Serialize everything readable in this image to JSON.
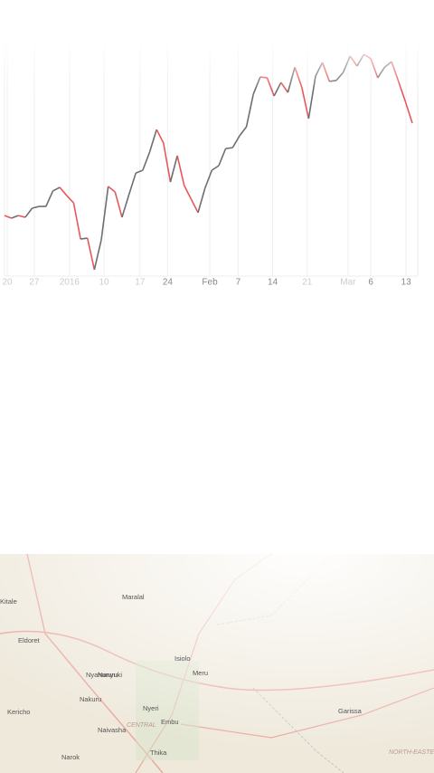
{
  "chart_data": {
    "type": "line",
    "values": [
      27.3,
      26.1,
      27.3,
      26.5,
      30.6,
      31.4,
      31.4,
      38.4,
      40.0,
      36.3,
      33.0,
      16.7,
      17.1,
      2.9,
      16.3,
      40.4,
      37.9,
      26.5,
      36.7,
      46.5,
      47.7,
      55.9,
      66.1,
      60.0,
      42.4,
      54.3,
      40.8,
      34.7,
      28.6,
      39.6,
      47.7,
      49.8,
      57.5,
      57.9,
      63.2,
      67.3,
      82.0,
      89.8,
      89.4,
      81.2,
      87.3,
      82.8,
      94.2,
      85.3,
      71.0,
      90.2,
      96.3,
      87.8,
      88.2,
      91.8,
      99.2,
      94.7,
      100,
      98.0,
      89.4,
      94.2,
      96.7,
      87.8,
      78.7,
      69.0
    ],
    "up_color": "#6e6e6e",
    "down_color": "#e8575a",
    "ylim": [
      0,
      100
    ],
    "xlim": [
      0,
      59
    ],
    "xticks": [
      {
        "value": 0.4,
        "label": "20"
      },
      {
        "value": 4.3,
        "label": "27"
      },
      {
        "value": 9.4,
        "label": "2016"
      },
      {
        "value": 14.4,
        "label": "10"
      },
      {
        "value": 19.6,
        "label": "17"
      },
      {
        "value": 23.6,
        "label": "24"
      },
      {
        "value": 29.7,
        "label": "Feb"
      },
      {
        "value": 33.8,
        "label": "7"
      },
      {
        "value": 38.8,
        "label": "14"
      },
      {
        "value": 43.8,
        "label": "21"
      },
      {
        "value": 49.7,
        "label": "Mar"
      },
      {
        "value": 53,
        "label": "6"
      },
      {
        "value": 58.1,
        "label": "13"
      }
    ],
    "grid": true
  },
  "map": {
    "labels": [
      "Kitale",
      "Eldoret",
      "Maralal",
      "Nanyuki",
      "Isiolo",
      "Meru",
      "Nyahururu",
      "Nakuru",
      "Nyeri",
      "Embu",
      "CENTRAL",
      "Naivasha",
      "Kericho",
      "Narok",
      "Thika",
      "Garissa",
      "NORTH-EASTERN"
    ]
  }
}
